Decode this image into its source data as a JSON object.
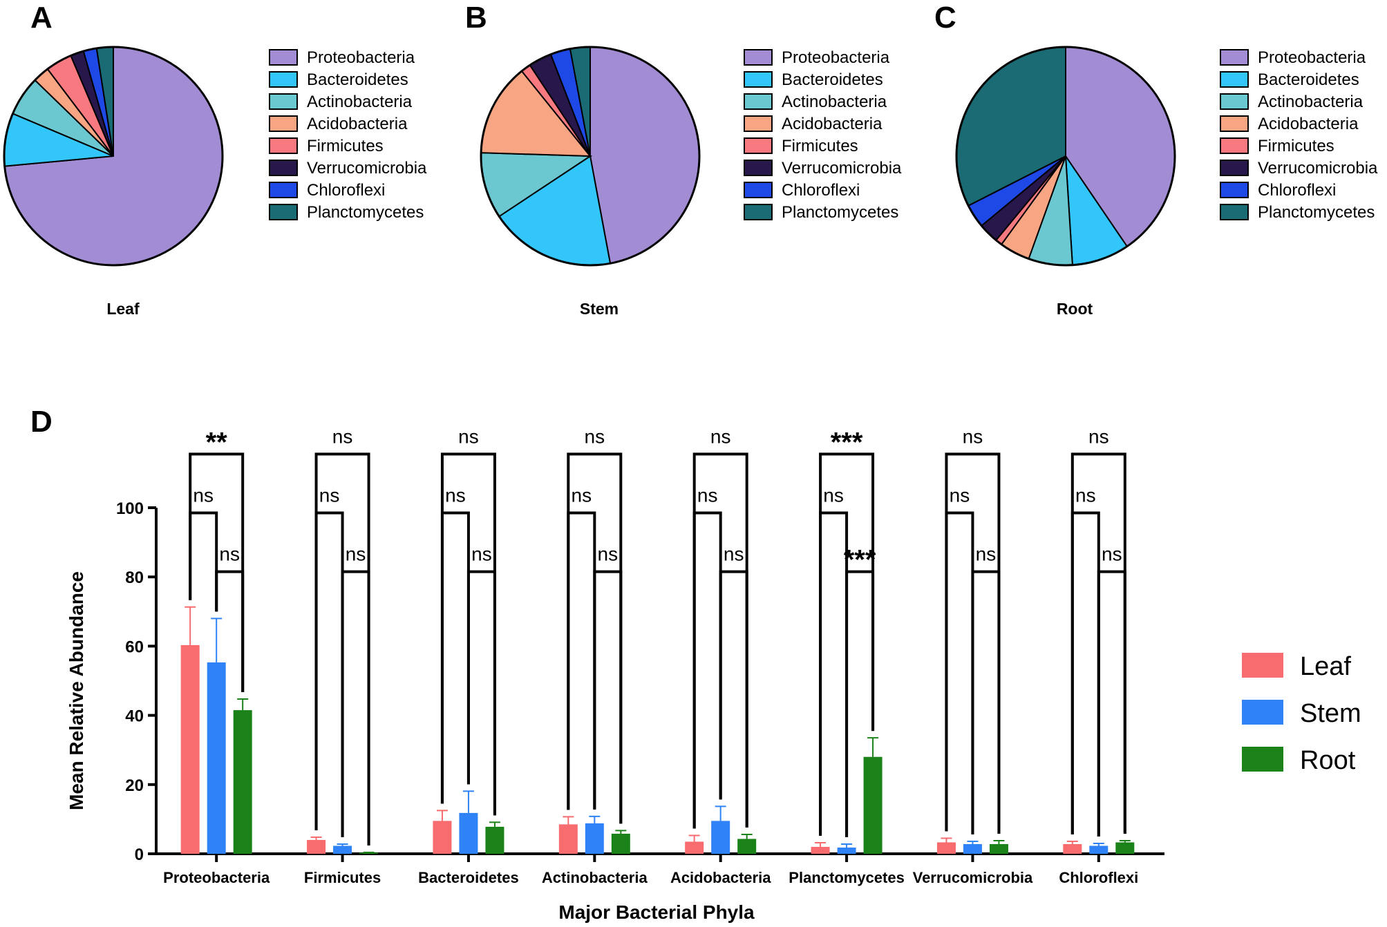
{
  "chart_data": [
    {
      "type": "pie",
      "panel": "A",
      "title": "Leaf",
      "legend": [
        "Proteobacteria",
        "Bacteroidetes",
        "Actinobacteria",
        "Acidobacteria",
        "Firmicutes",
        "Verrucomicrobia",
        "Chloroflexi",
        "Planctomycetes"
      ],
      "values": [
        75.0,
        8.0,
        6.0,
        2.5,
        4.0,
        2.0,
        2.0,
        2.5
      ]
    },
    {
      "type": "pie",
      "panel": "B",
      "title": "Stem",
      "legend": [
        "Proteobacteria",
        "Bacteroidetes",
        "Actinobacteria",
        "Acidobacteria",
        "Firmicutes",
        "Verrucomicrobia",
        "Chloroflexi",
        "Planctomycetes"
      ],
      "values": [
        48.0,
        19.0,
        10.0,
        14.0,
        1.5,
        3.5,
        3.0,
        3.0
      ]
    },
    {
      "type": "pie",
      "panel": "C",
      "title": "Root",
      "legend": [
        "Proteobacteria",
        "Bacteroidetes",
        "Actinobacteria",
        "Acidobacteria",
        "Firmicutes",
        "Verrucomicrobia",
        "Chloroflexi",
        "Planctomycetes"
      ],
      "values": [
        40.5,
        8.5,
        6.5,
        4.5,
        1.0,
        3.0,
        3.5,
        32.5
      ]
    },
    {
      "type": "bar",
      "panel": "D",
      "title": "",
      "xlabel": "Major Bacterial Phyla",
      "ylabel": "Mean Relative Abundance",
      "ylim": [
        0,
        100
      ],
      "yticks": [
        "0",
        "20",
        "40",
        "60",
        "80",
        "100"
      ],
      "categories": [
        "Proteobacteria",
        "Firmicutes",
        "Bacteroidetes",
        "Actinobacteria",
        "Acidobacteria",
        "Planctomycetes",
        "Verrucomicrobia",
        "Chloroflexi"
      ],
      "series": [
        {
          "name": "Leaf",
          "values": [
            60.3,
            4.0,
            9.5,
            8.5,
            3.5,
            2.0,
            3.3,
            2.8
          ],
          "errors": [
            11.0,
            0.8,
            3.0,
            2.2,
            1.8,
            1.2,
            1.2,
            0.8
          ]
        },
        {
          "name": "Stem",
          "values": [
            55.3,
            2.3,
            11.8,
            8.8,
            9.5,
            1.8,
            2.8,
            2.3
          ],
          "errors": [
            12.7,
            0.5,
            6.3,
            2.0,
            4.2,
            1.0,
            0.8,
            0.7
          ]
        },
        {
          "name": "Root",
          "values": [
            41.5,
            0.3,
            7.8,
            5.8,
            4.3,
            28.0,
            2.8,
            3.3
          ],
          "errors": [
            3.2,
            0.1,
            1.3,
            0.9,
            1.3,
            5.5,
            1.0,
            0.5
          ]
        }
      ],
      "significance": {
        "leaf_vs_root": [
          "**",
          "ns",
          "ns",
          "ns",
          "ns",
          "***",
          "ns",
          "ns"
        ],
        "leaf_vs_stem": [
          "ns",
          "ns",
          "ns",
          "ns",
          "ns",
          "ns",
          "ns",
          "ns"
        ],
        "stem_vs_root": [
          "ns",
          "ns",
          "ns",
          "ns",
          "ns",
          "***",
          "ns",
          "ns"
        ]
      }
    }
  ],
  "colors": {
    "pie": [
      "#a28cd4",
      "#33c6fb",
      "#6cc8d0",
      "#f8a584",
      "#f87a80",
      "#27174a",
      "#1e49e6",
      "#1a6b74"
    ],
    "bars": [
      "#f86b6e",
      "#2f83f6",
      "#1b8219"
    ]
  }
}
